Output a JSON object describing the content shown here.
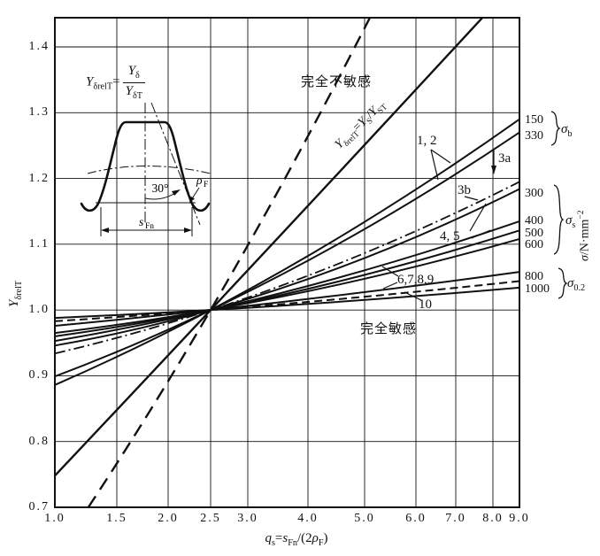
{
  "figure": {
    "formula": {
      "lhs_base": "Y",
      "lhs_sub": "δrelT",
      "equals": "=",
      "num_base": "Y",
      "num_sub": "δ",
      "den_base": "Y",
      "den_sub": "δT"
    },
    "line_label": {
      "lhs_base": "Y",
      "lhs_sub": "δrelT",
      "equals": "=",
      "num_base": "Y",
      "num_sub": "S",
      "slash": "/",
      "den_base": "Y",
      "den_sub": "ST"
    },
    "insensitive_label": "完全不敏感",
    "sensitive_label": "完全敏感"
  },
  "axes": {
    "x": {
      "ticks": [
        "1.0",
        "1.5",
        "2.0",
        "2.5",
        "3.0",
        "4.0",
        "5.0",
        "6.0",
        "7.0",
        "8.0",
        "9.0"
      ],
      "label": {
        "q_base": "q",
        "q_sub": "s",
        "eq": "=",
        "s_base": "s",
        "s_sub": "Fn",
        "open": "/(2",
        "rho_base": "ρ",
        "rho_sub": "F",
        "close": ")"
      }
    },
    "y": {
      "ticks": [
        "0.7",
        "0.8",
        "0.9",
        "1.0",
        "1.1",
        "1.2",
        "1.3",
        "1.4"
      ],
      "label": {
        "base": "Y",
        "sub": "δrelT"
      }
    },
    "right_unit": {
      "base": "σ",
      "unit": "/N·mm",
      "sup": "−2"
    }
  },
  "right_labels": {
    "sigma_b": {
      "values": [
        "150",
        "330"
      ],
      "name_base": "σ",
      "name_sub": "b"
    },
    "sigma_s": {
      "values": [
        "300",
        "400",
        "500",
        "600"
      ],
      "name_base": "σ",
      "name_sub": "s"
    },
    "sigma_02": {
      "values": [
        "800",
        "1000"
      ],
      "name_base": "σ",
      "name_sub": "0.2"
    }
  },
  "curve_labels": {
    "c12": "1, 2",
    "c3a": "3a",
    "c3b": "3b",
    "c45": "4, 5",
    "c6789": "6,7,8,9",
    "c10": "10"
  },
  "inset": {
    "angle": "30°",
    "rho_base": "ρ",
    "rho_sub": "F",
    "s_base": "s",
    "s_sub": "Fn"
  },
  "chart_data": {
    "type": "line",
    "title": "Relative notch sensitivity factor chart",
    "xlabel": "qs = sFn/(2ρF)",
    "ylabel": "YδrelT",
    "x_axis": {
      "scale": "log-like",
      "ticks": [
        1,
        1.5,
        2,
        2.5,
        3,
        4,
        5,
        6,
        7,
        8,
        9
      ],
      "range": [
        1,
        9
      ]
    },
    "y_axis": {
      "range": [
        0.7,
        1.444
      ],
      "gridline_step": 0.1
    },
    "pivot": [
      2.5,
      1.0
    ],
    "grid": true,
    "series": [
      {
        "id": "1",
        "sigma": "150",
        "group": "σb",
        "style": "solid",
        "points": [
          [
            1,
            0.886
          ],
          [
            2.5,
            1.0
          ],
          [
            9,
            1.29
          ]
        ]
      },
      {
        "id": "2",
        "sigma": "330",
        "group": "σb",
        "style": "solid",
        "points": [
          [
            1,
            0.899
          ],
          [
            2.5,
            1.0
          ],
          [
            9,
            1.27
          ]
        ]
      },
      {
        "id": "3b",
        "sigma": "",
        "group": "",
        "style": "dashdot",
        "points": [
          [
            1,
            0.934
          ],
          [
            2.5,
            1.0
          ],
          [
            9,
            1.195
          ]
        ]
      },
      {
        "id": "4",
        "sigma": "300",
        "group": "σs",
        "style": "solid",
        "points": [
          [
            1,
            0.946
          ],
          [
            2.5,
            1.0
          ],
          [
            9,
            1.184
          ]
        ]
      },
      {
        "id": "5",
        "sigma": "400",
        "group": "σs",
        "style": "solid",
        "points": [
          [
            1,
            0.953
          ],
          [
            2.5,
            1.0
          ],
          [
            9,
            1.135
          ]
        ]
      },
      {
        "id": "6",
        "sigma": "500",
        "group": "σs",
        "style": "solid",
        "points": [
          [
            1,
            0.96
          ],
          [
            2.5,
            1.0
          ],
          [
            9,
            1.121
          ]
        ]
      },
      {
        "id": "7",
        "sigma": "600",
        "group": "σs",
        "style": "solid",
        "points": [
          [
            1,
            0.965
          ],
          [
            2.5,
            1.0
          ],
          [
            9,
            1.108
          ]
        ]
      },
      {
        "id": "8",
        "sigma": "800",
        "group": "σ0.2",
        "style": "solid",
        "points": [
          [
            1,
            0.976
          ],
          [
            2.5,
            1.0
          ],
          [
            9,
            1.058
          ]
        ]
      },
      {
        "id": "10",
        "sigma": "",
        "group": "",
        "style": "dashed",
        "points": [
          [
            1,
            0.983
          ],
          [
            2.5,
            1.0
          ],
          [
            9,
            1.044
          ]
        ]
      },
      {
        "id": "9",
        "sigma": "1000",
        "group": "σ0.2",
        "style": "solid",
        "points": [
          [
            1,
            0.988
          ],
          [
            2.5,
            1.0
          ],
          [
            9,
            1.034
          ]
        ]
      },
      {
        "id": "fully-insensitive",
        "sigma": "",
        "group": "",
        "style": "longdash",
        "points": [
          [
            1.27,
            0.7
          ],
          [
            2.5,
            1.0
          ],
          [
            5.1,
            1.444
          ]
        ]
      },
      {
        "id": "ys-yst",
        "sigma": "",
        "group": "",
        "style": "solidthick",
        "points": [
          [
            1,
            0.748
          ],
          [
            2.5,
            1.0
          ],
          [
            7.71,
            1.444
          ]
        ]
      }
    ]
  }
}
